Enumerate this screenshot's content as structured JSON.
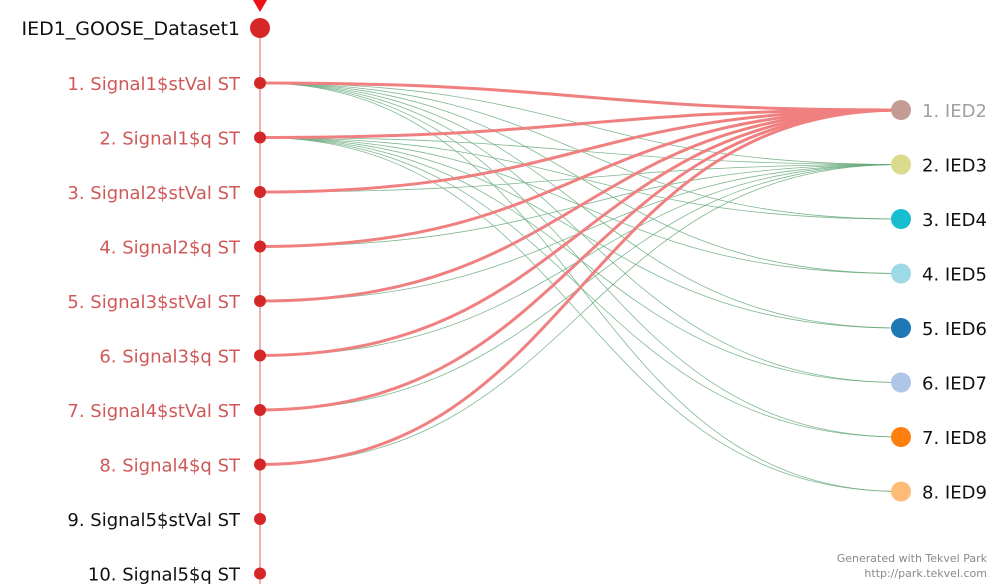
{
  "dataset": {
    "label": "IED1_GOOSE_Dataset1",
    "marker_color": "#d62728",
    "axis_color": "#e06060"
  },
  "signals": [
    {
      "label": "1. Signal1$stVal ST",
      "highlighted": true
    },
    {
      "label": "2. Signal1$q ST",
      "highlighted": true
    },
    {
      "label": "3. Signal2$stVal ST",
      "highlighted": true
    },
    {
      "label": "4. Signal2$q ST",
      "highlighted": true
    },
    {
      "label": "5. Signal3$stVal ST",
      "highlighted": true
    },
    {
      "label": "6. Signal3$q ST",
      "highlighted": true
    },
    {
      "label": "7. Signal4$stVal ST",
      "highlighted": true
    },
    {
      "label": "8. Signal4$q ST",
      "highlighted": true
    },
    {
      "label": "9. Signal5$stVal ST",
      "highlighted": false
    },
    {
      "label": "10. Signal5$q ST",
      "highlighted": false
    }
  ],
  "ieds": [
    {
      "label": "1. IED2",
      "color": "#c49c94",
      "dimmed": true
    },
    {
      "label": "2. IED3",
      "color": "#dbdb8d",
      "dimmed": false
    },
    {
      "label": "3. IED4",
      "color": "#17becf",
      "dimmed": false
    },
    {
      "label": "4. IED5",
      "color": "#9edae5",
      "dimmed": false
    },
    {
      "label": "5. IED6",
      "color": "#1f77b4",
      "dimmed": false
    },
    {
      "label": "6. IED7",
      "color": "#aec7e8",
      "dimmed": false
    },
    {
      "label": "7. IED8",
      "color": "#ff7f0e",
      "dimmed": false
    },
    {
      "label": "8. IED9",
      "color": "#ffbb78",
      "dimmed": false
    }
  ],
  "links": {
    "highlight_color": "#f08080",
    "normal_color": "#6aaa7e",
    "highlighted_target": 0,
    "thin_links": [
      [
        0,
        1
      ],
      [
        0,
        2
      ],
      [
        0,
        3
      ],
      [
        0,
        4
      ],
      [
        0,
        5
      ],
      [
        0,
        6
      ],
      [
        0,
        7
      ],
      [
        1,
        1
      ],
      [
        1,
        2
      ],
      [
        1,
        3
      ],
      [
        1,
        4
      ],
      [
        1,
        5
      ],
      [
        1,
        6
      ],
      [
        1,
        7
      ],
      [
        2,
        1
      ],
      [
        3,
        1
      ],
      [
        4,
        1
      ],
      [
        5,
        1
      ],
      [
        6,
        1
      ],
      [
        7,
        1
      ]
    ]
  },
  "colors": {
    "highlight_text": "#d05858",
    "normal_text": "#111111",
    "dimmed_text": "#a0a0a0"
  },
  "footer": {
    "line1": "Generated with Tekvel Park",
    "line2": "http://park.tekvel.com"
  }
}
